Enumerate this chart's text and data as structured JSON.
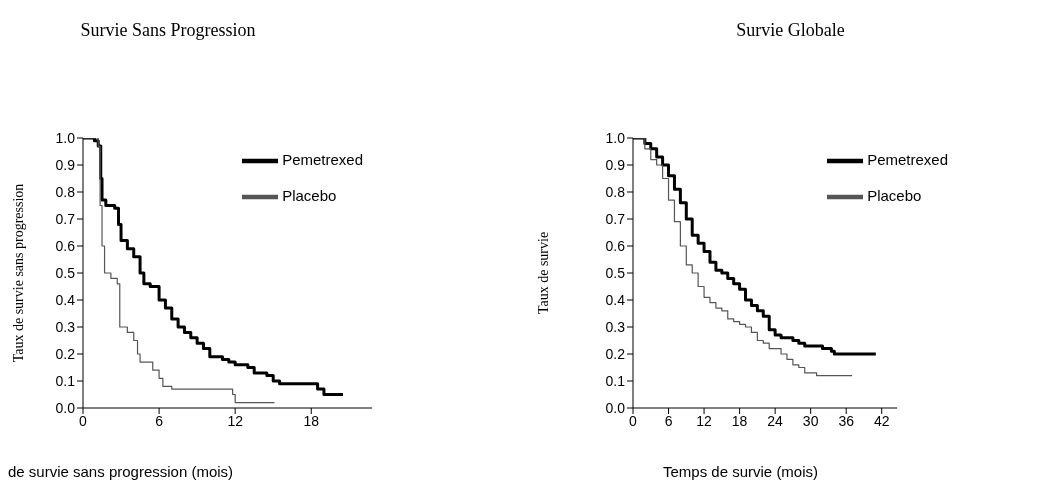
{
  "chart_data": [
    {
      "type": "step",
      "title": "Survie Sans Progression",
      "xlabel": "de survie sans progression (mois)",
      "ylabel": "Taux de survie sans progression",
      "xlim": [
        0,
        22.8
      ],
      "xticks": [
        0,
        6,
        12,
        18
      ],
      "ylim": [
        0,
        1
      ],
      "yticks": [
        {
          "value": 0,
          "label": "0.0"
        },
        {
          "value": 0.1,
          "label": "0.1"
        },
        {
          "value": 0.2,
          "label": "0.2"
        },
        {
          "value": 0.3,
          "label": "0.3"
        },
        {
          "value": 0.4,
          "label": "0.4"
        },
        {
          "value": 0.5,
          "label": "0.5"
        },
        {
          "value": 0.6,
          "label": "0.6"
        },
        {
          "value": 0.7,
          "label": "0.7"
        },
        {
          "value": 0.8,
          "label": "0.8"
        },
        {
          "value": 0.9,
          "label": "0.9"
        },
        {
          "value": 1,
          "label": "1.0"
        }
      ],
      "grid": false,
      "legend": "top right",
      "marker": "none",
      "line_style": "solid",
      "series": [
        {
          "name": "Pemetrexed",
          "color": "#000000",
          "x": [
            0,
            0.9,
            1.2,
            1.4,
            1.5,
            1.8,
            2.5,
            2.8,
            3.0,
            3.5,
            4.0,
            4.5,
            4.8,
            5.3,
            6.0,
            6.5,
            7.0,
            7.5,
            8.0,
            8.5,
            9.0,
            9.5,
            10.0,
            11.0,
            11.5,
            12.0,
            13.0,
            13.5,
            14.5,
            15.0,
            15.5,
            18.0,
            18.5,
            19.0,
            20.5
          ],
          "values": [
            1.0,
            0.99,
            0.97,
            0.85,
            0.77,
            0.75,
            0.74,
            0.68,
            0.62,
            0.59,
            0.56,
            0.5,
            0.46,
            0.45,
            0.4,
            0.37,
            0.33,
            0.3,
            0.28,
            0.26,
            0.24,
            0.22,
            0.19,
            0.18,
            0.17,
            0.16,
            0.15,
            0.13,
            0.12,
            0.1,
            0.09,
            0.09,
            0.07,
            0.05,
            0.05
          ]
        },
        {
          "name": "Placebo",
          "color": "#555555",
          "x": [
            0,
            1.2,
            1.35,
            1.5,
            1.7,
            2.2,
            2.7,
            2.9,
            3.5,
            4.0,
            4.3,
            4.5,
            5.5,
            6.0,
            6.3,
            7.0,
            11.8,
            12.0,
            15.1
          ],
          "values": [
            1.0,
            0.97,
            0.75,
            0.6,
            0.5,
            0.48,
            0.46,
            0.3,
            0.28,
            0.25,
            0.2,
            0.17,
            0.14,
            0.11,
            0.08,
            0.07,
            0.05,
            0.02,
            0.02
          ]
        }
      ]
    },
    {
      "type": "step",
      "title": "Survie Globale",
      "xlabel": "Temps de survie (mois)",
      "ylabel": "Taux de survie",
      "xlim": [
        0,
        44.6
      ],
      "xticks": [
        0,
        6,
        12,
        18,
        24,
        30,
        36,
        42
      ],
      "ylim": [
        0,
        1
      ],
      "yticks": [
        {
          "value": 0,
          "label": "0.0"
        },
        {
          "value": 0.1,
          "label": "0.1"
        },
        {
          "value": 0.2,
          "label": "0.2"
        },
        {
          "value": 0.3,
          "label": "0.3"
        },
        {
          "value": 0.4,
          "label": "0.4"
        },
        {
          "value": 0.5,
          "label": "0.5"
        },
        {
          "value": 0.6,
          "label": "0.6"
        },
        {
          "value": 0.7,
          "label": "0.7"
        },
        {
          "value": 0.8,
          "label": "0.8"
        },
        {
          "value": 0.9,
          "label": "0.9"
        },
        {
          "value": 1,
          "label": "1.0"
        }
      ],
      "grid": false,
      "legend": "top right",
      "marker": "none",
      "line_style": "solid",
      "series": [
        {
          "name": "Pemetrexed",
          "color": "#000000",
          "x": [
            0,
            1,
            2,
            3,
            4,
            5,
            6,
            7,
            8,
            9,
            10,
            11,
            12,
            13,
            14,
            15,
            16,
            17,
            18,
            19,
            20,
            21,
            22,
            23,
            24,
            25,
            26,
            27,
            28,
            29,
            31,
            32,
            33.5,
            34,
            41
          ],
          "values": [
            1.0,
            1.0,
            0.98,
            0.96,
            0.93,
            0.9,
            0.86,
            0.81,
            0.76,
            0.7,
            0.64,
            0.61,
            0.58,
            0.54,
            0.51,
            0.5,
            0.48,
            0.46,
            0.44,
            0.4,
            0.38,
            0.36,
            0.34,
            0.29,
            0.27,
            0.26,
            0.26,
            0.25,
            0.24,
            0.23,
            0.23,
            0.22,
            0.21,
            0.2,
            0.2
          ]
        },
        {
          "name": "Placebo",
          "color": "#555555",
          "x": [
            0,
            1,
            2,
            3,
            4,
            5,
            6,
            7,
            8,
            9,
            10,
            11,
            12,
            13,
            14,
            15,
            16,
            17,
            18,
            19,
            20,
            21,
            22,
            23,
            24,
            25,
            26,
            27,
            28,
            29,
            31,
            37
          ],
          "values": [
            1.0,
            1.0,
            0.96,
            0.92,
            0.9,
            0.85,
            0.77,
            0.69,
            0.6,
            0.53,
            0.5,
            0.45,
            0.41,
            0.39,
            0.37,
            0.36,
            0.33,
            0.32,
            0.31,
            0.3,
            0.28,
            0.25,
            0.24,
            0.22,
            0.22,
            0.2,
            0.18,
            0.16,
            0.15,
            0.13,
            0.12,
            0.12
          ]
        }
      ]
    }
  ]
}
